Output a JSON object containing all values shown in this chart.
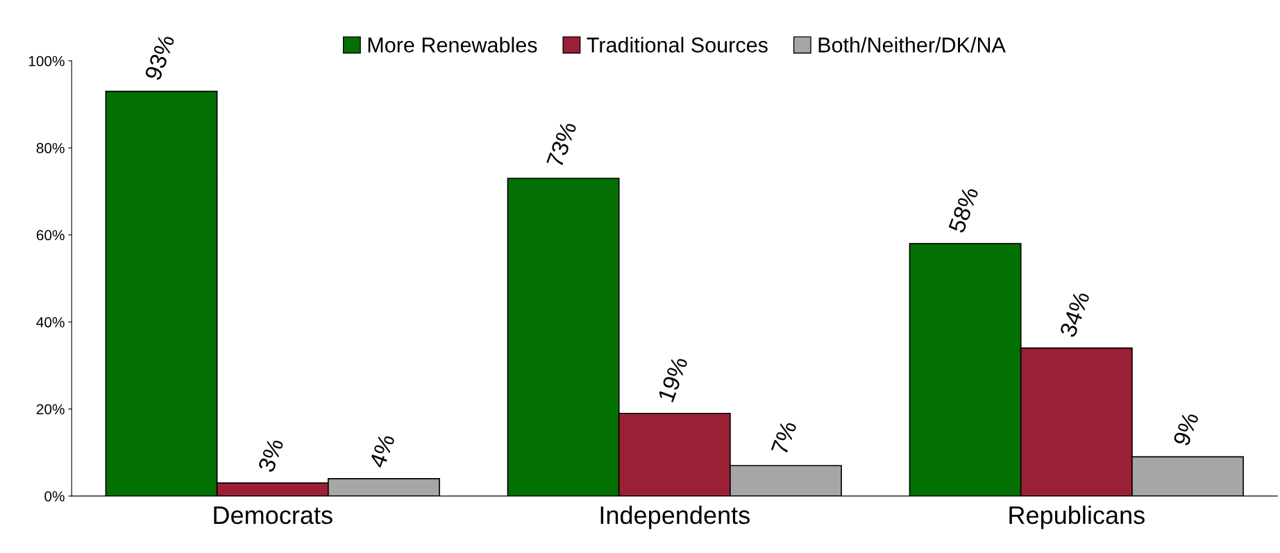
{
  "chart_data": {
    "type": "bar",
    "categories": [
      "Democrats",
      "Independents",
      "Republicans"
    ],
    "series": [
      {
        "name": "More Renewables",
        "color": "#037003",
        "values": [
          93,
          73,
          58
        ],
        "value_labels": [
          "93%",
          "73%",
          "58%"
        ]
      },
      {
        "name": "Traditional Sources",
        "color": "#9b2035",
        "values": [
          3,
          19,
          34
        ],
        "value_labels": [
          "3%",
          "19%",
          "34%"
        ]
      },
      {
        "name": "Both/Neither/DK/NA",
        "color": "#a6a6a6",
        "values": [
          4,
          7,
          9
        ],
        "value_labels": [
          "4%",
          "7%",
          "9%"
        ]
      }
    ],
    "ylim": [
      0,
      100
    ],
    "yticks": [
      {
        "value": 0,
        "label": "0%"
      },
      {
        "value": 20,
        "label": "20%"
      },
      {
        "value": 40,
        "label": "40%"
      },
      {
        "value": 60,
        "label": "60%"
      },
      {
        "value": 80,
        "label": "80%"
      },
      {
        "value": 100,
        "label": "100%"
      }
    ],
    "grid": false,
    "legend": "top"
  }
}
